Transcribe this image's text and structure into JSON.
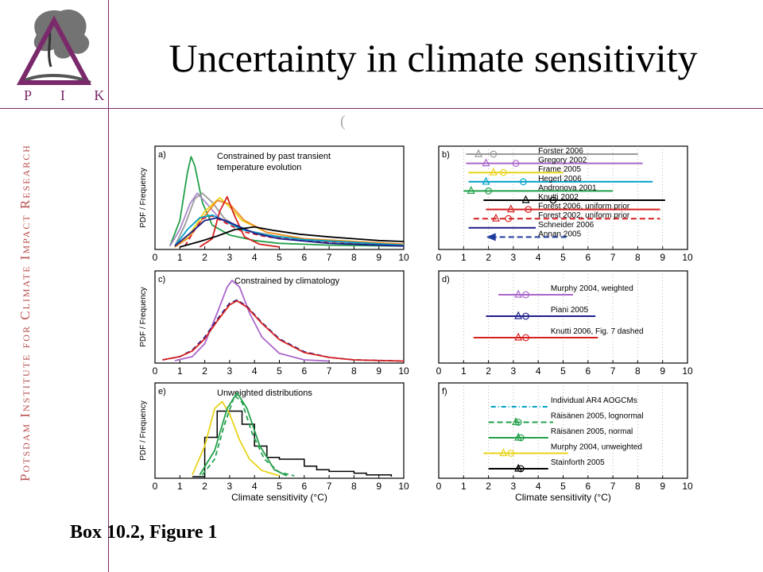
{
  "slide": {
    "title": "Uncertainty in climate sensitivity",
    "caption": "Box 10.2, Figure 1",
    "logo_letters": "P I K",
    "side_label": "Potsdam Institute for Climate Impact Research",
    "stray_mark": "("
  },
  "colors": {
    "accent": "#7a2a6a",
    "side_text": "#b9504f"
  },
  "chart_data": [
    {
      "panel": "a)",
      "type": "line",
      "annotation": [
        "Constrained by past transient",
        "temperature evolution"
      ],
      "ylabel": "PDF / Frequency",
      "xlim": [
        0,
        10
      ],
      "xticks": [
        0,
        1,
        2,
        3,
        4,
        5,
        6,
        7,
        8,
        9,
        10
      ],
      "series": [
        {
          "color": "#22a04a",
          "points": [
            [
              0.6,
              0.02
            ],
            [
              1.0,
              0.3
            ],
            [
              1.3,
              0.82
            ],
            [
              1.45,
              1.0
            ],
            [
              1.6,
              0.9
            ],
            [
              1.9,
              0.5
            ],
            [
              2.3,
              0.25
            ],
            [
              3,
              0.14
            ],
            [
              4,
              0.08
            ],
            [
              5,
              0.05
            ],
            [
              7,
              0.03
            ],
            [
              10,
              0.02
            ]
          ]
        },
        {
          "color": "#aa88cc",
          "points": [
            [
              0.6,
              0.02
            ],
            [
              1.0,
              0.2
            ],
            [
              1.4,
              0.48
            ],
            [
              1.7,
              0.6
            ],
            [
              2.1,
              0.48
            ],
            [
              2.6,
              0.32
            ],
            [
              3.5,
              0.2
            ],
            [
              5,
              0.12
            ],
            [
              7,
              0.07
            ],
            [
              10,
              0.04
            ]
          ]
        },
        {
          "color": "#999999",
          "points": [
            [
              0.8,
              0.02
            ],
            [
              1.2,
              0.25
            ],
            [
              1.6,
              0.54
            ],
            [
              1.9,
              0.6
            ],
            [
              2.3,
              0.5
            ],
            [
              2.8,
              0.32
            ],
            [
              3.5,
              0.2
            ],
            [
              5,
              0.12
            ],
            [
              7,
              0.07
            ],
            [
              10,
              0.03
            ]
          ]
        },
        {
          "color": "#e8d31a",
          "points": [
            [
              0.8,
              0.01
            ],
            [
              1.4,
              0.15
            ],
            [
              2.0,
              0.4
            ],
            [
              2.6,
              0.55
            ],
            [
              3.0,
              0.45
            ],
            [
              3.5,
              0.3
            ],
            [
              4.5,
              0.17
            ],
            [
              6,
              0.1
            ],
            [
              10,
              0.04
            ]
          ]
        },
        {
          "color": "#f08a20",
          "points": [
            [
              0.8,
              0.01
            ],
            [
              1.4,
              0.12
            ],
            [
              2.0,
              0.35
            ],
            [
              2.5,
              0.52
            ],
            [
              3.0,
              0.48
            ],
            [
              3.6,
              0.3
            ],
            [
              4.5,
              0.17
            ],
            [
              6,
              0.1
            ],
            [
              10,
              0.04
            ]
          ]
        },
        {
          "color": "#d62020",
          "points": [
            [
              1.8,
              0.01
            ],
            [
              2.3,
              0.1
            ],
            [
              2.6,
              0.4
            ],
            [
              2.9,
              0.56
            ],
            [
              3.2,
              0.35
            ],
            [
              3.6,
              0.12
            ],
            [
              4.2,
              0.04
            ],
            [
              5,
              0.01
            ]
          ]
        },
        {
          "color": "#d62020",
          "dashed": true,
          "points": [
            [
              1.2,
              0.02
            ],
            [
              1.6,
              0.2
            ],
            [
              1.9,
              0.32
            ],
            [
              2.3,
              0.35
            ],
            [
              2.8,
              0.28
            ],
            [
              3.5,
              0.18
            ],
            [
              4.5,
              0.12
            ],
            [
              6,
              0.08
            ],
            [
              10,
              0.03
            ]
          ]
        },
        {
          "color": "#00a0c8",
          "points": [
            [
              0.8,
              0.02
            ],
            [
              1.3,
              0.2
            ],
            [
              1.8,
              0.33
            ],
            [
              2.3,
              0.36
            ],
            [
              2.8,
              0.3
            ],
            [
              3.5,
              0.2
            ],
            [
              4.5,
              0.14
            ],
            [
              6,
              0.09
            ],
            [
              10,
              0.03
            ]
          ]
        },
        {
          "color": "#1e1e8c",
          "points": [
            [
              0.8,
              0.02
            ],
            [
              1.5,
              0.18
            ],
            [
              2.0,
              0.3
            ],
            [
              2.5,
              0.33
            ],
            [
              3.0,
              0.28
            ],
            [
              4,
              0.16
            ],
            [
              5,
              0.1
            ],
            [
              7,
              0.05
            ],
            [
              10,
              0.02
            ]
          ]
        },
        {
          "color": "#000000",
          "points": [
            [
              1.0,
              0.01
            ],
            [
              1.8,
              0.07
            ],
            [
              2.5,
              0.13
            ],
            [
              3.2,
              0.2
            ],
            [
              4.0,
              0.23
            ],
            [
              4.8,
              0.19
            ],
            [
              5.8,
              0.15
            ],
            [
              7,
              0.12
            ],
            [
              8,
              0.1
            ],
            [
              9,
              0.08
            ],
            [
              10,
              0.07
            ]
          ]
        }
      ]
    },
    {
      "panel": "b)",
      "type": "range",
      "xlim": [
        0,
        10
      ],
      "xticks": [
        0,
        1,
        2,
        3,
        4,
        5,
        6,
        7,
        8,
        9,
        10
      ],
      "rows": [
        {
          "label": "Forster 2006",
          "color": "#999999",
          "start": 1.1,
          "end": 8.0,
          "tri": 1.6,
          "circ": 2.2
        },
        {
          "label": "Gregory 2002",
          "color": "#aa66cc",
          "start": 1.1,
          "end": 8.2,
          "tri": 1.9,
          "circ": 3.1
        },
        {
          "label": "Frame 2005",
          "color": "#e8d31a",
          "start": 1.2,
          "end": 5.0,
          "tri": 2.2,
          "circ": 2.6
        },
        {
          "label": "Hegerl 2006",
          "color": "#00a0c8",
          "start": 1.2,
          "end": 8.6,
          "tri": 1.9,
          "circ": 3.4
        },
        {
          "label": "Andronova 2001",
          "color": "#22a04a",
          "start": 1.0,
          "end": 7.0,
          "tri": 1.3,
          "circ": 2.0
        },
        {
          "label": "Knutti 2002",
          "color": "#000000",
          "start": 1.8,
          "end": 9.1,
          "tri": 3.5,
          "circ": 4.6
        },
        {
          "label": "Forest 2006, uniform prior",
          "color": "#d62020",
          "start": 1.9,
          "end": 8.9,
          "tri": 2.9,
          "circ": 3.6
        },
        {
          "label": "Forest 2002, uniform prior",
          "color": "#d62020",
          "dashed": true,
          "start": 1.4,
          "end": 8.9,
          "tri": 2.3,
          "circ": 2.8
        },
        {
          "label": "Schneider 2006",
          "color": "#1e1e8c",
          "start": 1.2,
          "end": 3.9,
          "tri": null,
          "circ": null
        },
        {
          "label": "Annan 2005",
          "color": "#1e3ca0",
          "dashed": true,
          "start": 2.1,
          "end": 5.2,
          "tri": null,
          "circ": null,
          "arrow": true
        }
      ]
    },
    {
      "panel": "c)",
      "type": "line",
      "annotation": [
        "Constrained by climatology"
      ],
      "ylabel": "PDF / Frequency",
      "xlim": [
        0,
        10
      ],
      "xticks": [
        0,
        1,
        2,
        3,
        4,
        5,
        6,
        7,
        8,
        9,
        10
      ],
      "series": [
        {
          "color": "#aa66cc",
          "points": [
            [
              0.8,
              0.01
            ],
            [
              1.5,
              0.06
            ],
            [
              2.0,
              0.22
            ],
            [
              2.5,
              0.6
            ],
            [
              2.9,
              0.92
            ],
            [
              3.1,
              1.0
            ],
            [
              3.4,
              0.92
            ],
            [
              3.8,
              0.6
            ],
            [
              4.3,
              0.3
            ],
            [
              5,
              0.1
            ],
            [
              6,
              0.02
            ],
            [
              7,
              0.005
            ]
          ]
        },
        {
          "color": "#1e1e8c",
          "dashed": true,
          "points": [
            [
              0.3,
              0.02
            ],
            [
              1,
              0.06
            ],
            [
              1.5,
              0.14
            ],
            [
              2,
              0.3
            ],
            [
              2.5,
              0.52
            ],
            [
              3.0,
              0.72
            ],
            [
              3.3,
              0.76
            ],
            [
              3.7,
              0.68
            ],
            [
              4.3,
              0.48
            ],
            [
              5,
              0.28
            ],
            [
              6,
              0.12
            ],
            [
              7,
              0.05
            ],
            [
              8,
              0.02
            ],
            [
              10,
              0.005
            ]
          ]
        },
        {
          "color": "#d62020",
          "points": [
            [
              0.3,
              0.02
            ],
            [
              1,
              0.06
            ],
            [
              1.5,
              0.13
            ],
            [
              2,
              0.28
            ],
            [
              2.5,
              0.5
            ],
            [
              3.0,
              0.7
            ],
            [
              3.3,
              0.75
            ],
            [
              3.7,
              0.67
            ],
            [
              4.3,
              0.47
            ],
            [
              5,
              0.27
            ],
            [
              6,
              0.11
            ],
            [
              7,
              0.05
            ],
            [
              8,
              0.02
            ],
            [
              10,
              0.005
            ]
          ]
        }
      ]
    },
    {
      "panel": "d)",
      "type": "range",
      "xlim": [
        0,
        10
      ],
      "xticks": [
        0,
        1,
        2,
        3,
        4,
        5,
        6,
        7,
        8,
        9,
        10
      ],
      "rows": [
        {
          "label": "Murphy 2004, weighted",
          "color": "#aa66cc",
          "start": 2.4,
          "end": 5.4,
          "tri": 3.2,
          "circ": 3.5
        },
        {
          "label": "Piani 2005",
          "color": "#1e1e8c",
          "start": 1.9,
          "end": 6.3,
          "tri": 3.2,
          "circ": 3.5
        },
        {
          "label": "Knutti 2006, Fig. 7 dashed",
          "color": "#d62020",
          "start": 1.4,
          "end": 6.4,
          "tri": 3.2,
          "circ": 3.5
        }
      ]
    },
    {
      "panel": "e)",
      "type": "line",
      "annotation": [
        "Unweighted distributions"
      ],
      "ylabel": "PDF / Frequency",
      "xlabel": "Climate sensitivity (°C)",
      "xlim": [
        0,
        10
      ],
      "xticks": [
        0,
        1,
        2,
        3,
        4,
        5,
        6,
        7,
        8,
        9,
        10
      ],
      "histogram": {
        "edges": [
          1.5,
          2,
          2.5,
          3,
          3.5,
          4,
          4.5,
          5,
          5.5,
          6,
          6.5,
          7,
          7.5,
          8,
          8.5,
          9,
          9.5
        ],
        "heights": [
          0.0,
          0.45,
          0.75,
          0.75,
          0.6,
          0.35,
          0.22,
          0.2,
          0.2,
          0.12,
          0.08,
          0.06,
          0.06,
          0.04,
          0.02,
          0.02
        ]
      },
      "series": [
        {
          "color": "#e8d31a",
          "points": [
            [
              1.5,
              0.02
            ],
            [
              2.0,
              0.35
            ],
            [
              2.4,
              0.78
            ],
            [
              2.7,
              0.86
            ],
            [
              3.0,
              0.72
            ],
            [
              3.4,
              0.42
            ],
            [
              3.8,
              0.2
            ],
            [
              4.3,
              0.07
            ],
            [
              5,
              0.01
            ]
          ]
        },
        {
          "color": "#22a04a",
          "dashed": true,
          "points": [
            [
              1.9,
              0.02
            ],
            [
              2.4,
              0.2
            ],
            [
              2.8,
              0.6
            ],
            [
              3.2,
              0.93
            ],
            [
              3.5,
              0.85
            ],
            [
              3.9,
              0.5
            ],
            [
              4.4,
              0.2
            ],
            [
              5,
              0.05
            ],
            [
              5.6,
              0.01
            ]
          ]
        },
        {
          "color": "#22a04a",
          "points": [
            [
              1.8,
              0.02
            ],
            [
              2.4,
              0.3
            ],
            [
              2.9,
              0.78
            ],
            [
              3.3,
              0.96
            ],
            [
              3.7,
              0.78
            ],
            [
              4.2,
              0.36
            ],
            [
              4.8,
              0.08
            ],
            [
              5.3,
              0.01
            ]
          ]
        }
      ]
    },
    {
      "panel": "f)",
      "type": "range",
      "xlabel": "Climate sensitivity (°C)",
      "xlim": [
        0,
        10
      ],
      "xticks": [
        0,
        1,
        2,
        3,
        4,
        5,
        6,
        7,
        8,
        9,
        10
      ],
      "rows": [
        {
          "label": "Individual AR4 AOGCMs",
          "color": "#00a0c8",
          "dashdot": true,
          "start": 2.1,
          "end": 4.4,
          "tri": null,
          "circ": null
        },
        {
          "label": "Räisänen 2005, lognormal",
          "color": "#22a04a",
          "dashed": true,
          "start": 2.0,
          "end": 4.6,
          "tri": 3.1,
          "circ": 3.2
        },
        {
          "label": "Räisänen 2005, normal",
          "color": "#22a04a",
          "start": 2.0,
          "end": 4.4,
          "tri": 3.2,
          "circ": 3.3
        },
        {
          "label": "Murphy 2004, unweighted",
          "color": "#e8d31a",
          "start": 1.8,
          "end": 5.2,
          "tri": 2.6,
          "circ": 2.9
        },
        {
          "label": "Stainforth 2005",
          "color": "#000000",
          "start": 2.0,
          "end": 4.4,
          "tri": 3.2,
          "circ": 3.3
        }
      ]
    }
  ]
}
